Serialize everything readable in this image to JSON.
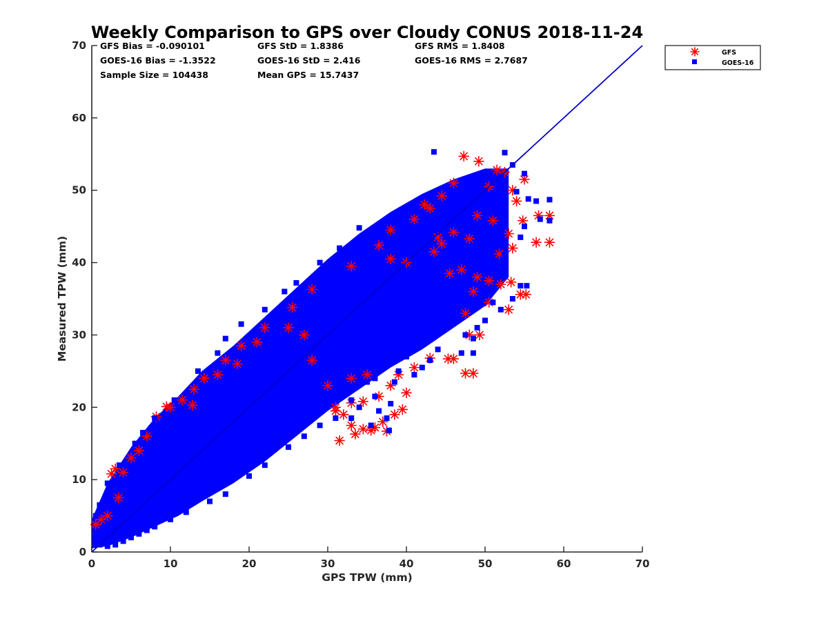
{
  "chart_data": {
    "type": "scatter",
    "title": "Weekly Comparison to GPS over Cloudy CONUS 2018-11-24",
    "xlabel": "GPS TPW (mm)",
    "ylabel": "Measured TPW (mm)",
    "xlim": [
      0,
      70
    ],
    "ylim": [
      0,
      70
    ],
    "xticks": [
      "0",
      "10",
      "20",
      "30",
      "40",
      "50",
      "60",
      "70"
    ],
    "yticks": [
      "0",
      "10",
      "20",
      "30",
      "40",
      "50",
      "60",
      "70"
    ],
    "grid": false,
    "legend_position": "outside top-right",
    "stats": [
      [
        "GFS Bias = -0.090101",
        "GFS StD = 1.8386",
        "GFS RMS = 1.8408"
      ],
      [
        "GOES-16 Bias = -1.3522",
        "GOES-16 StD = 2.416",
        "GOES-16 RMS = 2.7687"
      ],
      [
        "Sample Size = 104438",
        "Mean GPS = 15.7437",
        ""
      ]
    ],
    "reference_line": {
      "x": [
        0,
        70
      ],
      "y": [
        0,
        70
      ],
      "color": "#0000cc"
    },
    "series": [
      {
        "name": "GFS",
        "marker": "asterisk",
        "color": "#ff0000",
        "points": [
          [
            0.5,
            3.8
          ],
          [
            1.2,
            4.5
          ],
          [
            2,
            5
          ],
          [
            3,
            11.5
          ],
          [
            2.5,
            10.8
          ],
          [
            3.4,
            7.5
          ],
          [
            8.2,
            18.7
          ],
          [
            9.5,
            20.1
          ],
          [
            11.5,
            21
          ],
          [
            12.8,
            20.3
          ],
          [
            14.3,
            24
          ],
          [
            17,
            26.5
          ],
          [
            19,
            28.5
          ],
          [
            22,
            31
          ],
          [
            25.5,
            33.8
          ],
          [
            28,
            36.3
          ],
          [
            33,
            39.5
          ],
          [
            36.5,
            42.4
          ],
          [
            38,
            44.5
          ],
          [
            41,
            46
          ],
          [
            42.3,
            48
          ],
          [
            44.5,
            49.2
          ],
          [
            46,
            51
          ],
          [
            47.3,
            54.7
          ],
          [
            49.2,
            54
          ],
          [
            50.5,
            50.5
          ],
          [
            51.5,
            52.8
          ],
          [
            52.5,
            52.5
          ],
          [
            53.5,
            50
          ],
          [
            55,
            51.5
          ],
          [
            54,
            48.5
          ],
          [
            54.8,
            45.8
          ],
          [
            53,
            44
          ],
          [
            51,
            45.8
          ],
          [
            49,
            46.5
          ],
          [
            48,
            43.3
          ],
          [
            46,
            44.2
          ],
          [
            44.5,
            42.6
          ],
          [
            43.5,
            41.5
          ],
          [
            45.5,
            38.5
          ],
          [
            47,
            39
          ],
          [
            49,
            38
          ],
          [
            50.5,
            37.5
          ],
          [
            52,
            37
          ],
          [
            53.3,
            37.3
          ],
          [
            51.8,
            41.2
          ],
          [
            53.5,
            42
          ],
          [
            56.8,
            46.5
          ],
          [
            58.2,
            46.5
          ],
          [
            56.5,
            42.8
          ],
          [
            58.2,
            42.8
          ],
          [
            54.5,
            35.6
          ],
          [
            55.2,
            35.6
          ],
          [
            53,
            33.5
          ],
          [
            50.5,
            34.5
          ],
          [
            48.5,
            36
          ],
          [
            47.5,
            33
          ],
          [
            48,
            30
          ],
          [
            49.3,
            30
          ],
          [
            46,
            26.7
          ],
          [
            45.3,
            26.7
          ],
          [
            47.5,
            24.7
          ],
          [
            48.5,
            24.7
          ],
          [
            43,
            26.8
          ],
          [
            41,
            25.5
          ],
          [
            39,
            24.5
          ],
          [
            38,
            23
          ],
          [
            40,
            22
          ],
          [
            36.5,
            21.5
          ],
          [
            34.5,
            20.8
          ],
          [
            33,
            20.6
          ],
          [
            31,
            20
          ],
          [
            39.5,
            19.7
          ],
          [
            38.5,
            19
          ],
          [
            37,
            18
          ],
          [
            36,
            17.2
          ],
          [
            37.5,
            16.7
          ],
          [
            35.5,
            16.8
          ],
          [
            34.5,
            17
          ],
          [
            33.5,
            16.3
          ],
          [
            33,
            17.5
          ],
          [
            32,
            19
          ],
          [
            31,
            19.5
          ],
          [
            31.5,
            15.4
          ],
          [
            30,
            23
          ],
          [
            33,
            24
          ],
          [
            35,
            24.5
          ],
          [
            28,
            26.5
          ],
          [
            27,
            30
          ],
          [
            44,
            43.5
          ],
          [
            40,
            40
          ],
          [
            38,
            40.5
          ],
          [
            25,
            31
          ],
          [
            21,
            29
          ],
          [
            18.5,
            26
          ],
          [
            16,
            24.5
          ],
          [
            6,
            14
          ],
          [
            5,
            13
          ],
          [
            4,
            11
          ],
          [
            7,
            16
          ],
          [
            10,
            20
          ],
          [
            13,
            22.5
          ],
          [
            43,
            47.5
          ]
        ]
      },
      {
        "name": "GOES-16",
        "marker": "square",
        "color": "#0000ff",
        "points": [
          [
            43.5,
            55.3
          ],
          [
            52.5,
            55.2
          ],
          [
            53.5,
            53.5
          ],
          [
            55,
            52.3
          ],
          [
            54,
            49.8
          ],
          [
            55.5,
            48.8
          ],
          [
            56.5,
            48.5
          ],
          [
            58.2,
            48.7
          ],
          [
            57,
            46
          ],
          [
            58.2,
            45.8
          ],
          [
            55,
            45
          ],
          [
            54.5,
            43.5
          ],
          [
            52,
            44
          ],
          [
            52.5,
            41
          ],
          [
            50,
            41.5
          ],
          [
            52.5,
            39.5
          ],
          [
            54.5,
            36.8
          ],
          [
            55.3,
            36.8
          ],
          [
            53.5,
            35
          ],
          [
            51,
            34.5
          ],
          [
            52,
            33.5
          ],
          [
            50,
            32
          ],
          [
            49,
            31
          ],
          [
            47.5,
            30
          ],
          [
            48.5,
            29.5
          ],
          [
            47,
            27.5
          ],
          [
            48.5,
            27.5
          ],
          [
            44,
            28
          ],
          [
            43,
            26.5
          ],
          [
            42,
            25.5
          ],
          [
            40,
            27
          ],
          [
            41,
            24.5
          ],
          [
            39,
            25
          ],
          [
            36,
            24
          ],
          [
            35,
            23.5
          ],
          [
            38.5,
            23.5
          ],
          [
            38,
            20.5
          ],
          [
            36,
            21.5
          ],
          [
            37.5,
            18.5
          ],
          [
            37.8,
            16.8
          ],
          [
            35.5,
            17.5
          ],
          [
            33,
            18.5
          ],
          [
            34,
            20
          ],
          [
            36.5,
            19.5
          ],
          [
            30,
            21.5
          ],
          [
            32,
            22.5
          ],
          [
            29,
            23.5
          ],
          [
            27,
            22
          ],
          [
            34.5,
            33.5
          ],
          [
            37,
            37
          ],
          [
            36,
            43
          ],
          [
            34,
            44.8
          ],
          [
            31.5,
            42
          ],
          [
            29,
            40
          ],
          [
            26,
            37.2
          ],
          [
            24.5,
            36
          ],
          [
            22,
            33.5
          ],
          [
            19,
            31.5
          ],
          [
            17,
            29.5
          ],
          [
            16,
            27.5
          ],
          [
            13.5,
            25
          ],
          [
            10.5,
            21
          ],
          [
            8,
            18.5
          ],
          [
            6.5,
            16.5
          ],
          [
            5.5,
            15
          ],
          [
            3.5,
            12
          ],
          [
            2,
            9.5
          ],
          [
            1,
            6.5
          ],
          [
            0.5,
            5
          ],
          [
            1,
            1
          ],
          [
            2,
            0.8
          ],
          [
            3,
            1
          ],
          [
            4,
            1.5
          ],
          [
            5,
            2
          ],
          [
            6,
            2.5
          ],
          [
            7,
            3
          ],
          [
            8,
            3.5
          ],
          [
            10,
            4.5
          ],
          [
            12,
            5.5
          ],
          [
            15,
            7
          ],
          [
            17,
            8
          ],
          [
            20,
            10.5
          ],
          [
            22,
            12
          ],
          [
            25,
            14.5
          ],
          [
            27,
            16
          ],
          [
            29,
            17.5
          ],
          [
            31,
            18.5
          ],
          [
            33,
            21
          ],
          [
            42.5,
            46
          ],
          [
            45,
            48
          ],
          [
            47,
            50
          ],
          [
            49,
            50.8
          ],
          [
            50.5,
            52
          ],
          [
            51,
            47
          ],
          [
            46.5,
            45
          ],
          [
            44.5,
            38
          ],
          [
            45.5,
            35
          ],
          [
            42,
            32.5
          ],
          [
            40,
            30
          ],
          [
            38,
            27.5
          ]
        ]
      }
    ],
    "dense_cloud": {
      "color": "#0000ff",
      "band": [
        [
          0,
          0.5,
          4.5
        ],
        [
          2,
          0.8,
          9.5
        ],
        [
          5,
          2,
          14.5
        ],
        [
          8,
          3.5,
          18.5
        ],
        [
          11,
          5,
          21.5
        ],
        [
          14,
          7,
          25
        ],
        [
          18,
          9.5,
          28.5
        ],
        [
          22,
          12.5,
          32.5
        ],
        [
          26,
          16,
          36.5
        ],
        [
          30,
          19.5,
          40.5
        ],
        [
          34,
          22.5,
          44
        ],
        [
          38,
          25.5,
          47
        ],
        [
          42,
          28,
          49.5
        ],
        [
          46,
          31,
          51.5
        ],
        [
          50,
          34,
          53
        ],
        [
          53,
          38,
          53
        ]
      ]
    }
  }
}
